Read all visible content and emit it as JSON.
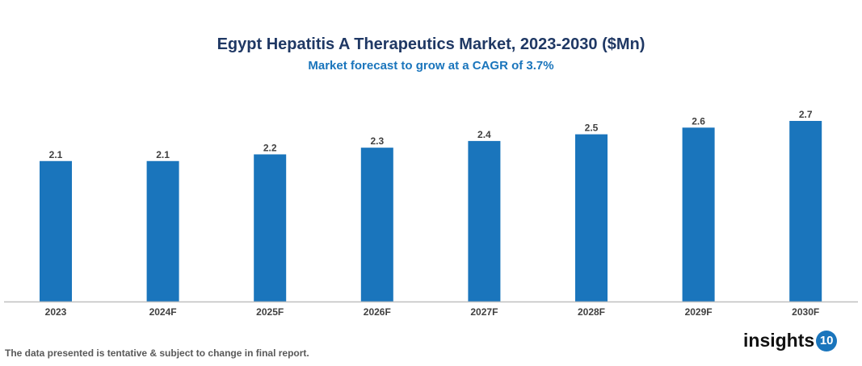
{
  "chart_data": {
    "type": "bar",
    "title": "Egypt Hepatitis A Therapeutics Market, 2023-2030 ($Mn)",
    "subtitle": "Market forecast to grow at a CAGR of 3.7%",
    "categories": [
      "2023",
      "2024F",
      "2025F",
      "2026F",
      "2027F",
      "2028F",
      "2029F",
      "2030F"
    ],
    "values": [
      2.1,
      2.1,
      2.2,
      2.3,
      2.4,
      2.5,
      2.6,
      2.7
    ],
    "xlabel": "",
    "ylabel": "",
    "ylim": [
      0,
      2.7
    ],
    "grid": false,
    "bar_color": "#1a75bc"
  },
  "footnote": "The data presented is tentative & subject to change in final report.",
  "logo": {
    "text": "insights",
    "badge": "10"
  }
}
